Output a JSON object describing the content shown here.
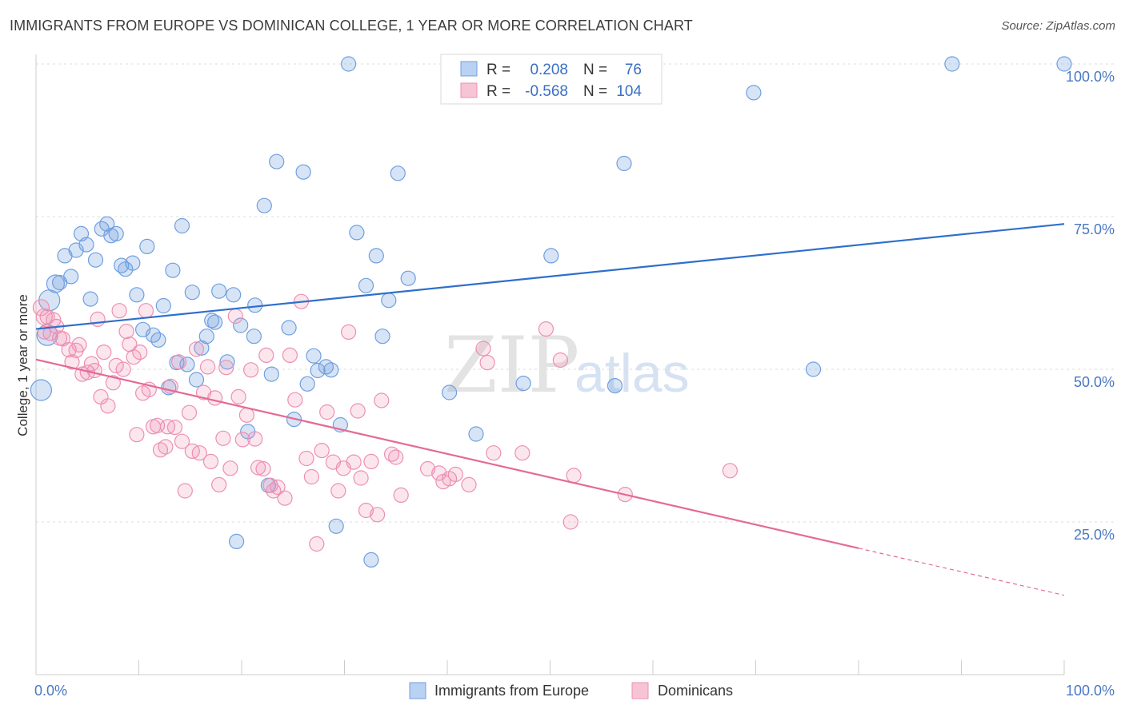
{
  "title": "IMMIGRANTS FROM EUROPE VS DOMINICAN COLLEGE, 1 YEAR OR MORE CORRELATION CHART",
  "source": "Source: ZipAtlas.com",
  "watermark": {
    "zip": "ZIP",
    "atlas": "atlas"
  },
  "legend_box": {
    "rows": [
      {
        "r_label": "R =",
        "r_value": "0.208",
        "n_label": "N =",
        "n_value": "76"
      },
      {
        "r_label": "R =",
        "r_value": "-0.568",
        "n_label": "N =",
        "n_value": "104"
      }
    ]
  },
  "chart_data": {
    "type": "scatter",
    "title": "IMMIGRANTS FROM EUROPE VS DOMINICAN COLLEGE, 1 YEAR OR MORE CORRELATION CHART",
    "xlabel": "",
    "ylabel": "College, 1 year or more",
    "xlim": [
      0,
      100
    ],
    "ylim": [
      0,
      105
    ],
    "x_tick_labels": [
      "0.0%",
      "100.0%"
    ],
    "y_ticks": [
      25,
      50,
      75,
      100
    ],
    "y_tick_labels": [
      "25.0%",
      "50.0%",
      "75.0%",
      "100.0%"
    ],
    "grid": true,
    "legend_position": "bottom",
    "colors": {
      "europe": "#6f9fe0",
      "dominicans": "#ee8fb0",
      "europe_line": "#2f6fcc",
      "dominicans_line": "#e46a96"
    },
    "series": [
      {
        "name": "Immigrants from Europe",
        "r": 0.208,
        "n": 76,
        "trend": {
          "x0": 0,
          "y0": 56.6,
          "x1": 100,
          "y1": 73.8
        },
        "points": [
          [
            0.5,
            46.6,
            13
          ],
          [
            1.1,
            55.6,
            13
          ],
          [
            1.3,
            61.3,
            13
          ],
          [
            1.9,
            64.0,
            11
          ],
          [
            2.3,
            64.2,
            9
          ],
          [
            2.8,
            68.6,
            9
          ],
          [
            3.4,
            65.2,
            9
          ],
          [
            3.9,
            69.5,
            9
          ],
          [
            4.4,
            72.2,
            9
          ],
          [
            4.9,
            70.4,
            9
          ],
          [
            5.3,
            61.5,
            9
          ],
          [
            5.8,
            67.9,
            9
          ],
          [
            6.4,
            73.0,
            9
          ],
          [
            6.9,
            73.8,
            9
          ],
          [
            7.3,
            71.9,
            9
          ],
          [
            7.8,
            72.2,
            9
          ],
          [
            8.3,
            67.0,
            9
          ],
          [
            8.7,
            66.4,
            9
          ],
          [
            9.4,
            67.4,
            9
          ],
          [
            9.8,
            62.2,
            9
          ],
          [
            10.4,
            56.5,
            9
          ],
          [
            10.8,
            70.1,
            9
          ],
          [
            11.4,
            55.6,
            9
          ],
          [
            11.9,
            54.8,
            9
          ],
          [
            12.4,
            60.4,
            9
          ],
          [
            12.9,
            47.0,
            9
          ],
          [
            13.3,
            66.2,
            9
          ],
          [
            13.7,
            51.1,
            9
          ],
          [
            14.2,
            73.5,
            9
          ],
          [
            14.7,
            50.8,
            9
          ],
          [
            15.2,
            62.6,
            9
          ],
          [
            15.6,
            48.3,
            9
          ],
          [
            16.1,
            53.5,
            9
          ],
          [
            16.6,
            55.4,
            9
          ],
          [
            17.1,
            58.0,
            9
          ],
          [
            17.4,
            57.7,
            9
          ],
          [
            17.8,
            62.8,
            9
          ],
          [
            18.6,
            51.2,
            9
          ],
          [
            19.2,
            62.2,
            9
          ],
          [
            19.5,
            21.8,
            9
          ],
          [
            19.9,
            57.2,
            9
          ],
          [
            20.6,
            39.8,
            9
          ],
          [
            21.2,
            55.4,
            9
          ],
          [
            21.3,
            60.5,
            9
          ],
          [
            22.2,
            76.8,
            9
          ],
          [
            22.6,
            31.0,
            9
          ],
          [
            22.9,
            49.2,
            9
          ],
          [
            23.4,
            84.0,
            9
          ],
          [
            24.6,
            56.8,
            9
          ],
          [
            25.1,
            41.8,
            9
          ],
          [
            26.0,
            82.3,
            9
          ],
          [
            26.4,
            47.6,
            9
          ],
          [
            27.0,
            52.2,
            9
          ],
          [
            27.4,
            49.8,
            9
          ],
          [
            28.2,
            50.4,
            9
          ],
          [
            28.7,
            49.9,
            9
          ],
          [
            29.2,
            24.3,
            9
          ],
          [
            29.6,
            40.9,
            9
          ],
          [
            30.4,
            100.0,
            9
          ],
          [
            31.2,
            72.4,
            9
          ],
          [
            32.1,
            63.7,
            9
          ],
          [
            32.6,
            18.8,
            9
          ],
          [
            33.1,
            68.6,
            9
          ],
          [
            33.7,
            55.4,
            9
          ],
          [
            34.3,
            61.3,
            9
          ],
          [
            35.2,
            82.1,
            9
          ],
          [
            36.2,
            64.9,
            9
          ],
          [
            40.2,
            46.2,
            9
          ],
          [
            42.8,
            39.4,
            9
          ],
          [
            47.4,
            47.7,
            9
          ],
          [
            50.1,
            68.6,
            9
          ],
          [
            56.3,
            47.3,
            9
          ],
          [
            57.2,
            83.7,
            9
          ],
          [
            69.8,
            95.3,
            9
          ],
          [
            75.6,
            50.0,
            9
          ],
          [
            89.1,
            100.0,
            9
          ],
          [
            100.0,
            100.0,
            9
          ]
        ]
      },
      {
        "name": "Dominicans",
        "r": -0.568,
        "n": 104,
        "trend": {
          "x0": 0,
          "y0": 51.6,
          "x1": 80,
          "y1": 20.7,
          "dash_x1": 100,
          "dash_y1": 13.0
        },
        "points": [
          [
            0.5,
            60.1,
            10
          ],
          [
            0.8,
            58.6,
            10
          ],
          [
            1.1,
            58.6,
            9
          ],
          [
            1.4,
            55.9,
            9
          ],
          [
            1.7,
            58.1,
            9
          ],
          [
            2.0,
            57.0,
            9
          ],
          [
            2.3,
            55.1,
            9
          ],
          [
            2.6,
            55.0,
            9
          ],
          [
            3.2,
            53.2,
            9
          ],
          [
            3.5,
            51.2,
            9
          ],
          [
            3.9,
            53.1,
            9
          ],
          [
            4.2,
            54.0,
            9
          ],
          [
            4.5,
            49.2,
            9
          ],
          [
            5.0,
            49.5,
            9
          ],
          [
            5.4,
            50.9,
            9
          ],
          [
            5.7,
            49.8,
            9
          ],
          [
            6.0,
            58.2,
            9
          ],
          [
            6.3,
            45.5,
            9
          ],
          [
            6.6,
            52.8,
            9
          ],
          [
            7.0,
            44.0,
            9
          ],
          [
            7.5,
            47.8,
            9
          ],
          [
            7.8,
            50.6,
            9
          ],
          [
            8.1,
            59.6,
            9
          ],
          [
            8.5,
            50.0,
            9
          ],
          [
            8.8,
            56.2,
            9
          ],
          [
            9.1,
            54.1,
            9
          ],
          [
            9.5,
            52.0,
            9
          ],
          [
            9.8,
            39.3,
            9
          ],
          [
            10.1,
            52.8,
            9
          ],
          [
            10.4,
            46.1,
            9
          ],
          [
            10.7,
            59.6,
            9
          ],
          [
            11.0,
            46.7,
            9
          ],
          [
            11.4,
            40.6,
            9
          ],
          [
            11.8,
            40.8,
            9
          ],
          [
            12.1,
            36.8,
            9
          ],
          [
            12.6,
            37.3,
            9
          ],
          [
            12.8,
            40.6,
            9
          ],
          [
            13.1,
            47.2,
            9
          ],
          [
            13.5,
            40.5,
            9
          ],
          [
            13.9,
            51.2,
            9
          ],
          [
            14.2,
            38.2,
            9
          ],
          [
            14.5,
            30.1,
            9
          ],
          [
            14.9,
            42.9,
            9
          ],
          [
            15.2,
            36.6,
            9
          ],
          [
            15.6,
            53.3,
            9
          ],
          [
            15.9,
            36.3,
            9
          ],
          [
            16.3,
            46.2,
            9
          ],
          [
            16.7,
            50.4,
            9
          ],
          [
            17.0,
            34.9,
            9
          ],
          [
            17.4,
            45.3,
            9
          ],
          [
            17.8,
            31.1,
            9
          ],
          [
            18.2,
            38.7,
            9
          ],
          [
            18.5,
            50.3,
            9
          ],
          [
            18.9,
            33.8,
            9
          ],
          [
            19.4,
            58.7,
            9
          ],
          [
            19.7,
            45.5,
            9
          ],
          [
            20.1,
            38.5,
            9
          ],
          [
            20.5,
            42.5,
            9
          ],
          [
            20.9,
            49.9,
            9
          ],
          [
            21.3,
            38.6,
            9
          ],
          [
            21.6,
            33.9,
            9
          ],
          [
            22.1,
            33.7,
            9
          ],
          [
            22.4,
            52.3,
            9
          ],
          [
            22.8,
            31.0,
            9
          ],
          [
            23.1,
            30.1,
            9
          ],
          [
            23.5,
            30.7,
            9
          ],
          [
            24.2,
            28.9,
            9
          ],
          [
            24.7,
            52.3,
            9
          ],
          [
            25.2,
            45.0,
            9
          ],
          [
            25.8,
            61.1,
            9
          ],
          [
            26.3,
            35.4,
            9
          ],
          [
            26.8,
            32.4,
            9
          ],
          [
            27.3,
            21.4,
            9
          ],
          [
            27.8,
            36.7,
            9
          ],
          [
            28.3,
            43.0,
            9
          ],
          [
            28.9,
            34.8,
            9
          ],
          [
            29.4,
            30.1,
            9
          ],
          [
            29.9,
            33.8,
            9
          ],
          [
            30.4,
            56.1,
            9
          ],
          [
            30.9,
            34.8,
            9
          ],
          [
            31.3,
            43.2,
            9
          ],
          [
            31.6,
            32.2,
            9
          ],
          [
            32.1,
            26.9,
            9
          ],
          [
            32.6,
            34.9,
            9
          ],
          [
            33.2,
            26.2,
            9
          ],
          [
            33.6,
            44.9,
            9
          ],
          [
            34.6,
            36.1,
            9
          ],
          [
            35.0,
            35.6,
            9
          ],
          [
            35.5,
            29.4,
            9
          ],
          [
            38.1,
            33.7,
            9
          ],
          [
            39.2,
            33.0,
            9
          ],
          [
            39.6,
            31.6,
            9
          ],
          [
            40.2,
            32.1,
            9
          ],
          [
            40.8,
            32.8,
            9
          ],
          [
            42.1,
            31.1,
            9
          ],
          [
            43.5,
            53.4,
            9
          ],
          [
            43.9,
            51.1,
            9
          ],
          [
            44.5,
            36.3,
            9
          ],
          [
            47.3,
            36.3,
            9
          ],
          [
            49.6,
            56.6,
            9
          ],
          [
            51.0,
            51.5,
            9
          ],
          [
            52.0,
            25.0,
            9
          ],
          [
            52.3,
            32.6,
            9
          ],
          [
            57.3,
            29.5,
            9
          ],
          [
            67.5,
            33.4,
            9
          ],
          [
            0.8,
            56.0,
            8
          ]
        ]
      }
    ]
  },
  "bottom_legend": {
    "europe_label": "Immigrants from Europe",
    "dominicans_label": "Dominicans"
  }
}
